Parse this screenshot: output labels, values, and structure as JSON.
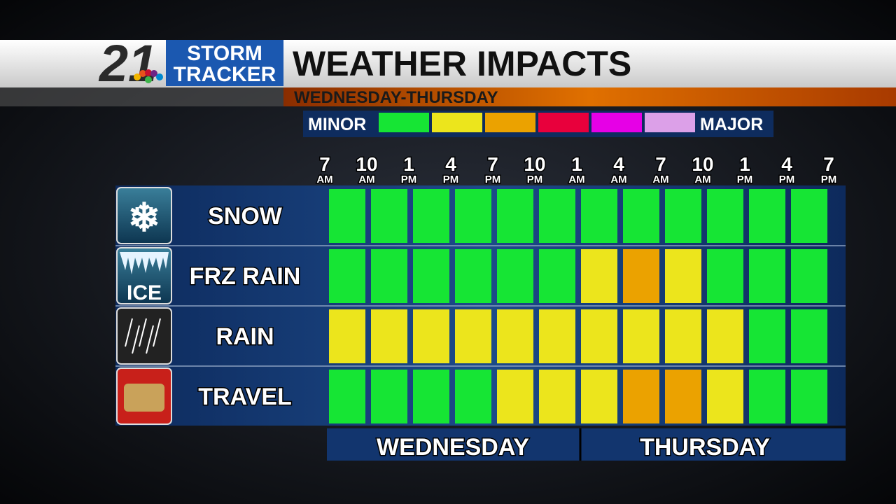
{
  "header": {
    "logo_number": "21",
    "logo_line1": "STORM",
    "logo_line2": "TRACKER",
    "title": "WEATHER IMPACTS",
    "subtitle": "WEDNESDAY-THURSDAY"
  },
  "legend": {
    "low_label": "MINOR",
    "high_label": "MAJOR",
    "colors": [
      "#16e534",
      "#ece51c",
      "#eba200",
      "#e8003c",
      "#e600e6",
      "#dca0e8"
    ]
  },
  "times": [
    {
      "hour": "7",
      "period": "AM"
    },
    {
      "hour": "10",
      "period": "AM"
    },
    {
      "hour": "1",
      "period": "PM"
    },
    {
      "hour": "4",
      "period": "PM"
    },
    {
      "hour": "7",
      "period": "PM"
    },
    {
      "hour": "10",
      "period": "PM"
    },
    {
      "hour": "1",
      "period": "AM"
    },
    {
      "hour": "4",
      "period": "AM"
    },
    {
      "hour": "7",
      "period": "AM"
    },
    {
      "hour": "10",
      "period": "AM"
    },
    {
      "hour": "1",
      "period": "PM"
    },
    {
      "hour": "4",
      "period": "PM"
    },
    {
      "hour": "7",
      "period": "PM"
    }
  ],
  "rows": [
    {
      "label": "SNOW",
      "levels": [
        1,
        1,
        1,
        1,
        1,
        1,
        1,
        1,
        1,
        1,
        1,
        1
      ]
    },
    {
      "label": "FRZ RAIN",
      "icon_text": "ICE",
      "levels": [
        1,
        1,
        1,
        1,
        1,
        1,
        2,
        3,
        2,
        1,
        1,
        1
      ]
    },
    {
      "label": "RAIN",
      "levels": [
        2,
        2,
        2,
        2,
        2,
        2,
        2,
        2,
        2,
        2,
        1,
        1
      ]
    },
    {
      "label": "TRAVEL",
      "levels": [
        1,
        1,
        1,
        1,
        2,
        2,
        2,
        3,
        3,
        2,
        1,
        1
      ]
    }
  ],
  "days": [
    "WEDNESDAY",
    "THURSDAY"
  ]
}
